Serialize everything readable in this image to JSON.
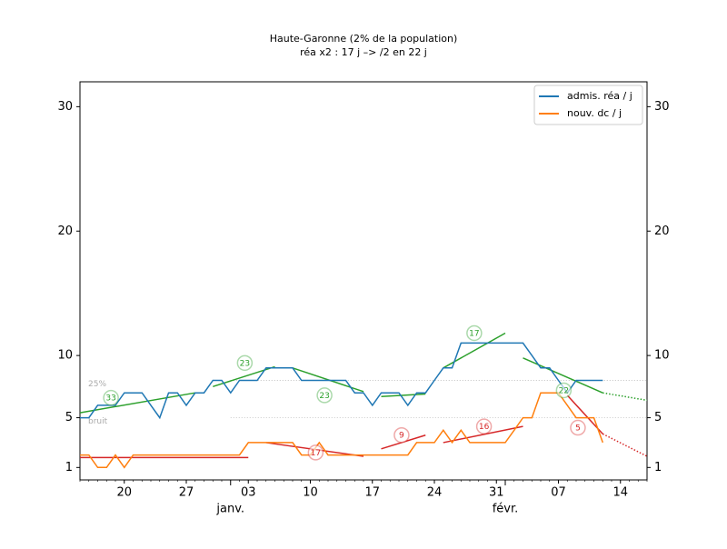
{
  "chart_data": {
    "type": "line",
    "title": "Haute-Garonne (2% de la population)",
    "subtitle": "réa x2 : 17 j –> /2 en 22 j",
    "categories": [
      null,
      null,
      null,
      null,
      null,
      "20",
      null,
      null,
      null,
      null,
      null,
      null,
      "27",
      null,
      null,
      null,
      null,
      null,
      null,
      "03",
      null,
      null,
      null,
      null,
      null,
      null,
      "10",
      null,
      null,
      null,
      null,
      null,
      null,
      "17",
      null,
      null,
      null,
      null,
      null,
      null,
      "24",
      null,
      null,
      null,
      null,
      null,
      null,
      "31",
      null,
      null,
      null,
      null,
      null,
      null,
      "07",
      null,
      null,
      null,
      null,
      null,
      null,
      "14",
      null,
      null,
      null
    ],
    "month_labels": [
      {
        "value": 17,
        "label": "janv."
      },
      {
        "value": 48,
        "label": "févr."
      }
    ],
    "ylim": [
      0,
      32
    ],
    "yticks": [
      1,
      5,
      10,
      20,
      30
    ],
    "legend": "upper right",
    "series": [
      {
        "name": "admis. réa / j",
        "color": "#1f77b4",
        "values": [
          5,
          5,
          6,
          6,
          6,
          7,
          7,
          7,
          6,
          5,
          7,
          7,
          6,
          7,
          7,
          8,
          8,
          7,
          8,
          8,
          8,
          9,
          9,
          9,
          9,
          8,
          8,
          8,
          8,
          8,
          8,
          7,
          7,
          6,
          7,
          7,
          7,
          6,
          7,
          7,
          8,
          9,
          9,
          11,
          11,
          11,
          11,
          11,
          11,
          11,
          11,
          10,
          9,
          9,
          8,
          7,
          8,
          8,
          8,
          8,
          null,
          null,
          null,
          null,
          null
        ]
      },
      {
        "name": "nouv. dc / j",
        "color": "#ff7f0e",
        "values": [
          2,
          2,
          1,
          1,
          2,
          1,
          2,
          2,
          2,
          2,
          2,
          2,
          2,
          2,
          2,
          2,
          2,
          2,
          2,
          3,
          3,
          3,
          3,
          3,
          3,
          2,
          2,
          3,
          2,
          2,
          2,
          2,
          2,
          2,
          2,
          2,
          2,
          2,
          3,
          3,
          3,
          4,
          3,
          4,
          3,
          3,
          3,
          3,
          3,
          4,
          5,
          5,
          7,
          7,
          7,
          6,
          5,
          5,
          5,
          3,
          null,
          null,
          null,
          null,
          null
        ]
      }
    ],
    "trends": [
      {
        "color": "#2ca02c",
        "x": [
          0,
          13
        ],
        "values": [
          5.4,
          7.0
        ]
      },
      {
        "color": "#2ca02c",
        "x": [
          15,
          22
        ],
        "values": [
          7.5,
          9.1
        ]
      },
      {
        "color": "#2ca02c",
        "x": [
          24,
          32
        ],
        "values": [
          9.0,
          7.1
        ]
      },
      {
        "color": "#2ca02c",
        "x": [
          34,
          39
        ],
        "values": [
          6.7,
          6.9
        ]
      },
      {
        "color": "#2ca02c",
        "x": [
          41,
          48
        ],
        "values": [
          9.0,
          11.8
        ]
      },
      {
        "color": "#2ca02c",
        "x": [
          50,
          59
        ],
        "values": [
          9.8,
          7.0
        ]
      },
      {
        "color": "#2ca02c",
        "x": [
          59,
          64
        ],
        "values": [
          7.0,
          6.4
        ],
        "dotted": true
      },
      {
        "color": "#d62728",
        "x": [
          0,
          19
        ],
        "values": [
          1.8,
          1.8
        ]
      },
      {
        "color": "#d62728",
        "x": [
          21,
          32
        ],
        "values": [
          3.0,
          1.9
        ]
      },
      {
        "color": "#d62728",
        "x": [
          34,
          39
        ],
        "values": [
          2.5,
          3.6
        ]
      },
      {
        "color": "#d62728",
        "x": [
          41,
          50
        ],
        "values": [
          3.0,
          4.3
        ]
      },
      {
        "color": "#d62728",
        "x": [
          55,
          59
        ],
        "values": [
          6.8,
          3.7
        ]
      },
      {
        "color": "#d62728",
        "x": [
          59,
          64
        ],
        "values": [
          3.7,
          1.9
        ],
        "dotted": true
      }
    ],
    "annotations": [
      {
        "text": 33,
        "x": 3.5,
        "y": 6.6,
        "color": "#2ca02c"
      },
      {
        "text": 23,
        "x": 18.6,
        "y": 9.4,
        "color": "#2ca02c"
      },
      {
        "text": 23,
        "x": 27.6,
        "y": 6.8,
        "color": "#2ca02c"
      },
      {
        "text": 17,
        "x": 44.5,
        "y": 11.8,
        "color": "#2ca02c"
      },
      {
        "text": 22,
        "x": 54.6,
        "y": 7.2,
        "color": "#2ca02c"
      },
      {
        "text": 17,
        "x": 26.6,
        "y": 2.2,
        "color": "#d62728"
      },
      {
        "text": 9,
        "x": 36.3,
        "y": 3.6,
        "color": "#d62728"
      },
      {
        "text": 16,
        "x": 45.6,
        "y": 4.3,
        "color": "#d62728"
      },
      {
        "text": 5,
        "x": 56.2,
        "y": 4.2,
        "color": "#d62728"
      }
    ],
    "thresholds": [
      {
        "label": "25%",
        "value": 8
      },
      {
        "label": "bruit",
        "value": 5
      }
    ]
  }
}
